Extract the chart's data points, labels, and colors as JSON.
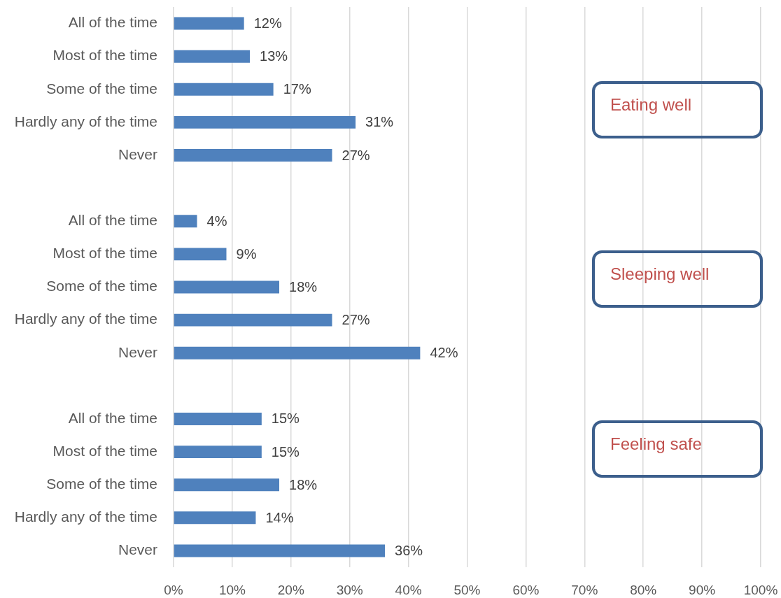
{
  "chart_data": {
    "type": "bar",
    "orientation": "horizontal",
    "categories": [
      "All of the time",
      "Most of the time",
      "Some of the time",
      "Hardly any of the time",
      "Never",
      null,
      "All of the time",
      "Most of the time",
      "Some of the time",
      "Hardly any of the time",
      "Never",
      null,
      "All of the time",
      "Most of the time",
      "Some of the time",
      "Hardly any of the time",
      "Never"
    ],
    "values": [
      12,
      13,
      17,
      31,
      27,
      null,
      4,
      9,
      18,
      27,
      42,
      null,
      15,
      15,
      18,
      14,
      36
    ],
    "value_labels": [
      "12%",
      "13%",
      "17%",
      "31%",
      "27%",
      null,
      "4%",
      "9%",
      "18%",
      "27%",
      "42%",
      null,
      "15%",
      "15%",
      "18%",
      "14%",
      "36%"
    ],
    "color": "#4f81bd",
    "xlim": [
      0,
      100
    ],
    "xticks": [
      {
        "value": 0,
        "label": "0%"
      },
      {
        "value": 10,
        "label": "10%"
      },
      {
        "value": 20,
        "label": "20%"
      },
      {
        "value": 30,
        "label": "30%"
      },
      {
        "value": 40,
        "label": "40%"
      },
      {
        "value": 50,
        "label": "50%"
      },
      {
        "value": 60,
        "label": "60%"
      },
      {
        "value": 70,
        "label": "70%"
      },
      {
        "value": 80,
        "label": "80%"
      },
      {
        "value": 90,
        "label": "90%"
      },
      {
        "value": 100,
        "label": "100%"
      }
    ],
    "grid": "x",
    "annotations": [
      "Eating well",
      "Sleeping well",
      "Feeling safe"
    ]
  }
}
